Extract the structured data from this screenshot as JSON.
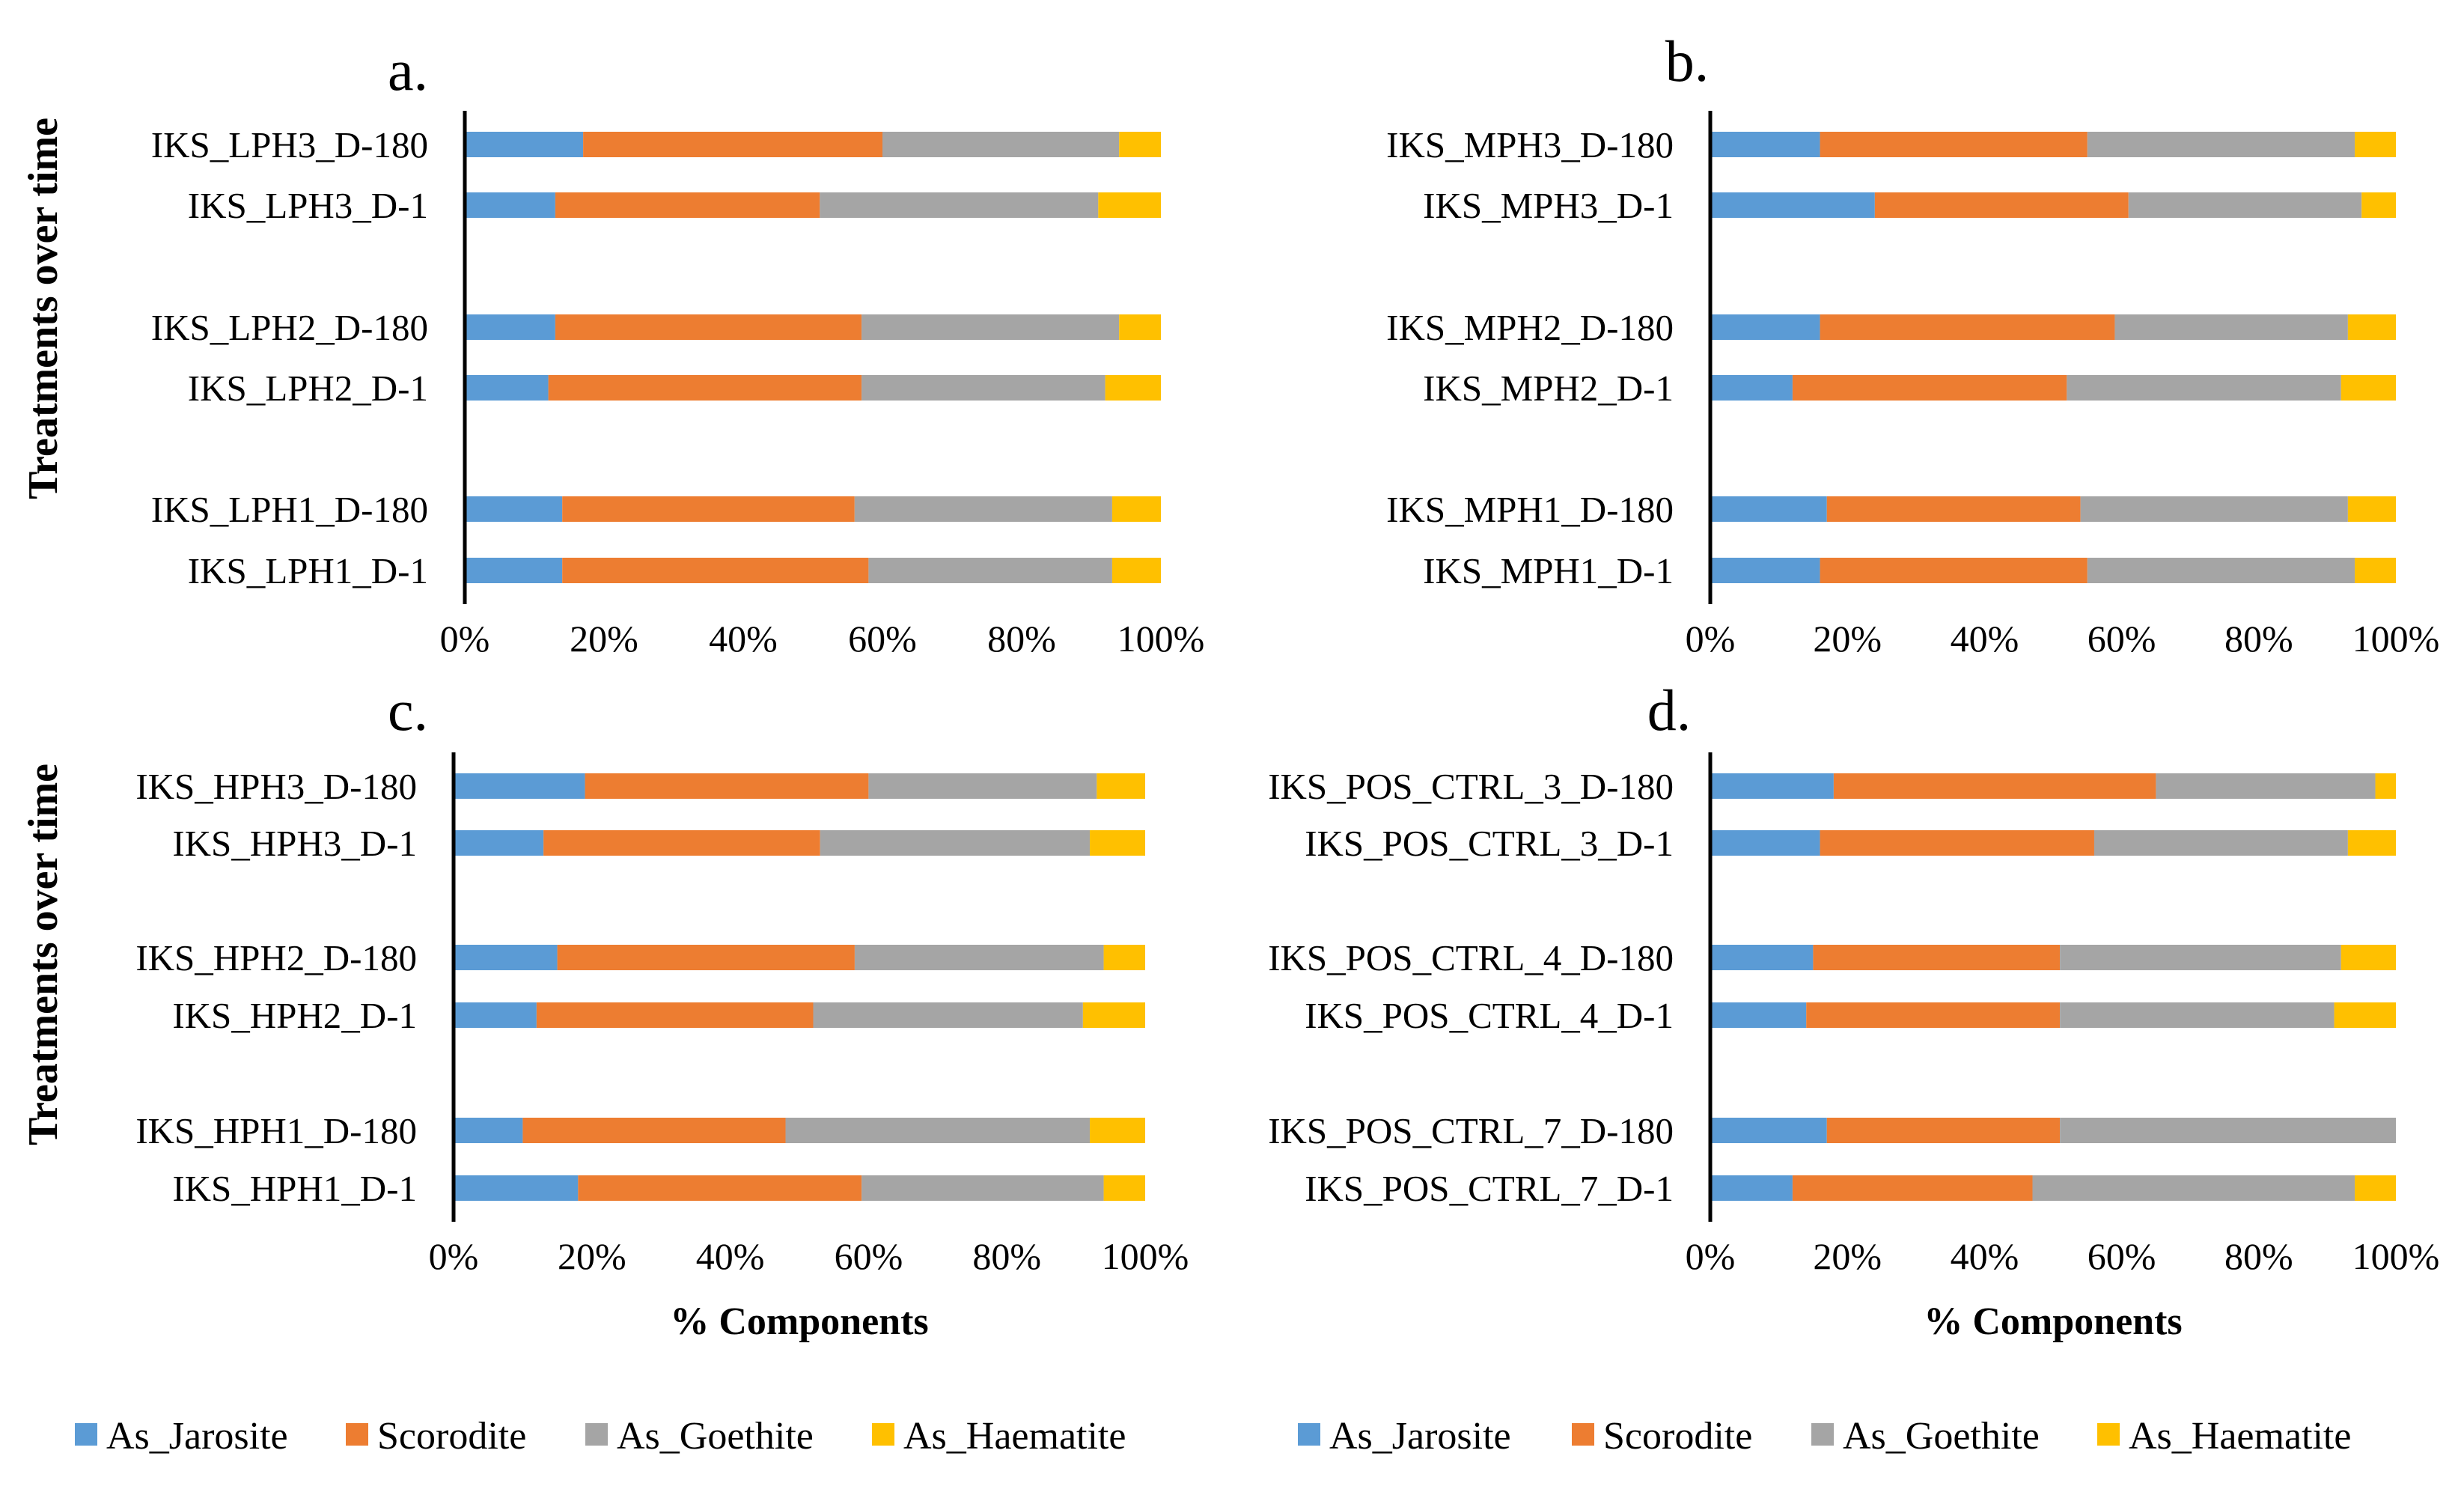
{
  "y_axis_title": "Treatments over time",
  "colors": {
    "As_Jarosite": "#5b9bd5",
    "Scorodite": "#ed7d31",
    "As_Goethite": "#a5a5a5",
    "As_Haematite": "#ffc000"
  },
  "legends": [
    {
      "items": [
        "As_Jarosite",
        "Scorodite",
        "As_Goethite",
        "As_Haematite"
      ]
    },
    {
      "items": [
        "As_Jarosite",
        "Scorodite",
        "As_Goethite",
        "As_Haematite"
      ]
    }
  ],
  "chart_data": [
    {
      "type": "bar",
      "stacked": "100%",
      "orientation": "horizontal",
      "panel_label": "a.",
      "xlabel": "",
      "ylabel": "Treatments over time",
      "xlim": [
        0,
        100
      ],
      "x_ticks": [
        "0%",
        "20%",
        "40%",
        "60%",
        "80%",
        "100%"
      ],
      "categories": [
        "IKS_LPH3_D-180",
        "IKS_LPH3_D-1",
        "IKS_LPH2_D-180",
        "IKS_LPH2_D-1",
        "IKS_LPH1_D-180",
        "IKS_LPH1_D-1"
      ],
      "series": [
        {
          "name": "As_Jarosite",
          "values": [
            17,
            13,
            13,
            12,
            14,
            14
          ]
        },
        {
          "name": "Scorodite",
          "values": [
            43,
            38,
            44,
            45,
            42,
            44
          ]
        },
        {
          "name": "As_Goethite",
          "values": [
            34,
            40,
            37,
            35,
            37,
            35
          ]
        },
        {
          "name": "As_Haematite",
          "values": [
            6,
            9,
            6,
            8,
            7,
            7
          ]
        }
      ]
    },
    {
      "type": "bar",
      "stacked": "100%",
      "orientation": "horizontal",
      "panel_label": "b.",
      "xlabel": "",
      "ylabel": "",
      "xlim": [
        0,
        100
      ],
      "x_ticks": [
        "0%",
        "20%",
        "40%",
        "60%",
        "80%",
        "100%"
      ],
      "categories": [
        "IKS_MPH3_D-180",
        "IKS_MPH3_D-1",
        "IKS_MPH2_D-180",
        "IKS_MPH2_D-1",
        "IKS_MPH1_D-180",
        "IKS_MPH1_D-1"
      ],
      "series": [
        {
          "name": "As_Jarosite",
          "values": [
            16,
            24,
            16,
            12,
            17,
            16
          ]
        },
        {
          "name": "Scorodite",
          "values": [
            39,
            37,
            43,
            40,
            37,
            39
          ]
        },
        {
          "name": "As_Goethite",
          "values": [
            39,
            34,
            34,
            40,
            39,
            39
          ]
        },
        {
          "name": "As_Haematite",
          "values": [
            6,
            5,
            7,
            8,
            7,
            6
          ]
        }
      ]
    },
    {
      "type": "bar",
      "stacked": "100%",
      "orientation": "horizontal",
      "panel_label": "c.",
      "xlabel": "% Components",
      "ylabel": "Treatments over time",
      "xlim": [
        0,
        100
      ],
      "x_ticks": [
        "0%",
        "20%",
        "40%",
        "60%",
        "80%",
        "100%"
      ],
      "categories": [
        "IKS_HPH3_D-180",
        "IKS_HPH3_D-1",
        "IKS_HPH2_D-180",
        "IKS_HPH2_D-1",
        "IKS_HPH1_D-180",
        "IKS_HPH1_D-1"
      ],
      "series": [
        {
          "name": "As_Jarosite",
          "values": [
            19,
            13,
            15,
            12,
            10,
            18
          ]
        },
        {
          "name": "Scorodite",
          "values": [
            41,
            40,
            43,
            40,
            38,
            41
          ]
        },
        {
          "name": "As_Goethite",
          "values": [
            33,
            39,
            36,
            39,
            44,
            35
          ]
        },
        {
          "name": "As_Haematite",
          "values": [
            7,
            8,
            6,
            9,
            8,
            6
          ]
        }
      ]
    },
    {
      "type": "bar",
      "stacked": "100%",
      "orientation": "horizontal",
      "panel_label": "d.",
      "xlabel": "% Components",
      "ylabel": "",
      "xlim": [
        0,
        100
      ],
      "x_ticks": [
        "0%",
        "20%",
        "40%",
        "60%",
        "80%",
        "100%"
      ],
      "categories": [
        "IKS_POS_CTRL_3_D-180",
        "IKS_POS_CTRL_3_D-1",
        "IKS_POS_CTRL_4_D-180",
        "IKS_POS_CTRL_4_D-1",
        "IKS_POS_CTRL_7_D-180",
        "IKS_POS_CTRL_7_D-1"
      ],
      "series": [
        {
          "name": "As_Jarosite",
          "values": [
            18,
            16,
            15,
            14,
            17,
            12
          ]
        },
        {
          "name": "Scorodite",
          "values": [
            47,
            40,
            36,
            37,
            34,
            35
          ]
        },
        {
          "name": "As_Goethite",
          "values": [
            32,
            37,
            41,
            40,
            49,
            47
          ]
        },
        {
          "name": "As_Haematite",
          "values": [
            3,
            7,
            8,
            9,
            0,
            6
          ]
        }
      ]
    }
  ]
}
